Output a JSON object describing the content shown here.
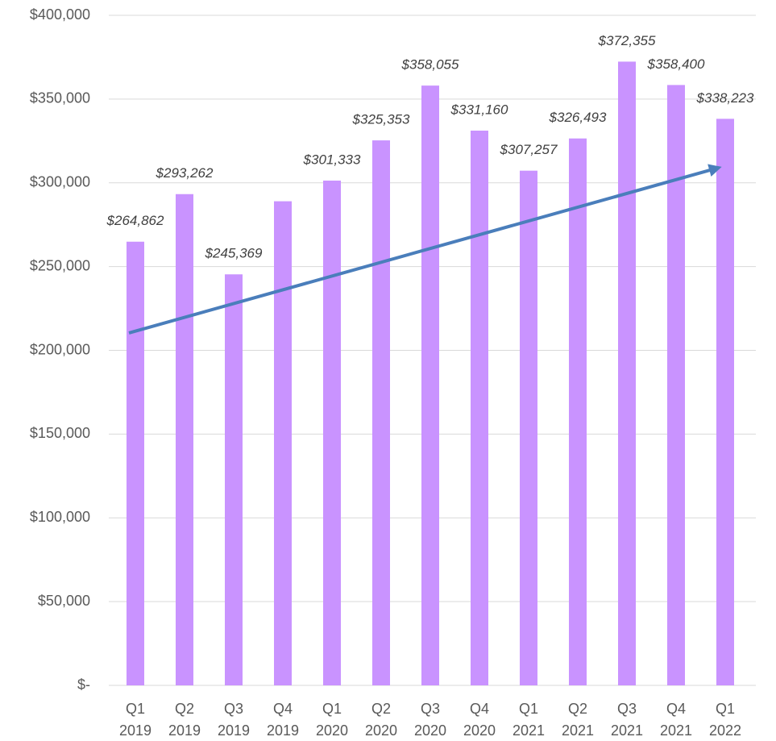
{
  "chart_data": {
    "type": "bar",
    "categories": [
      "Q1 2019",
      "Q2 2019",
      "Q3 2019",
      "Q4 2019",
      "Q1 2020",
      "Q2 2020",
      "Q3 2020",
      "Q4 2020",
      "Q1 2021",
      "Q2 2021",
      "Q3 2021",
      "Q4 2021",
      "Q1 2022"
    ],
    "values": [
      264862,
      293262,
      245369,
      289000,
      301333,
      325353,
      358055,
      331160,
      307257,
      326493,
      372355,
      358400,
      338223
    ],
    "value_labels": [
      "$264,862",
      "$293,262",
      "$245,369",
      null,
      "$301,333",
      "$325,353",
      "$358,055",
      "$331,160",
      "$307,257",
      "$326,493",
      "$372,355",
      "$358,400",
      "$338,223"
    ],
    "color": "#c993ff",
    "ylim": [
      0,
      400000
    ],
    "yticks": [
      {
        "value": 0,
        "label": "$-"
      },
      {
        "value": 50000,
        "label": "$50,000"
      },
      {
        "value": 100000,
        "label": "$100,000"
      },
      {
        "value": 150000,
        "label": "$150,000"
      },
      {
        "value": 200000,
        "label": "$200,000"
      },
      {
        "value": 250000,
        "label": "$250,000"
      },
      {
        "value": 300000,
        "label": "$300,000"
      },
      {
        "value": 350000,
        "label": "$350,000"
      },
      {
        "value": 400000,
        "label": "$400,000"
      }
    ],
    "grid": true,
    "trend": {
      "start": 210400,
      "end": 308500,
      "color": "#4a7ebb"
    }
  }
}
